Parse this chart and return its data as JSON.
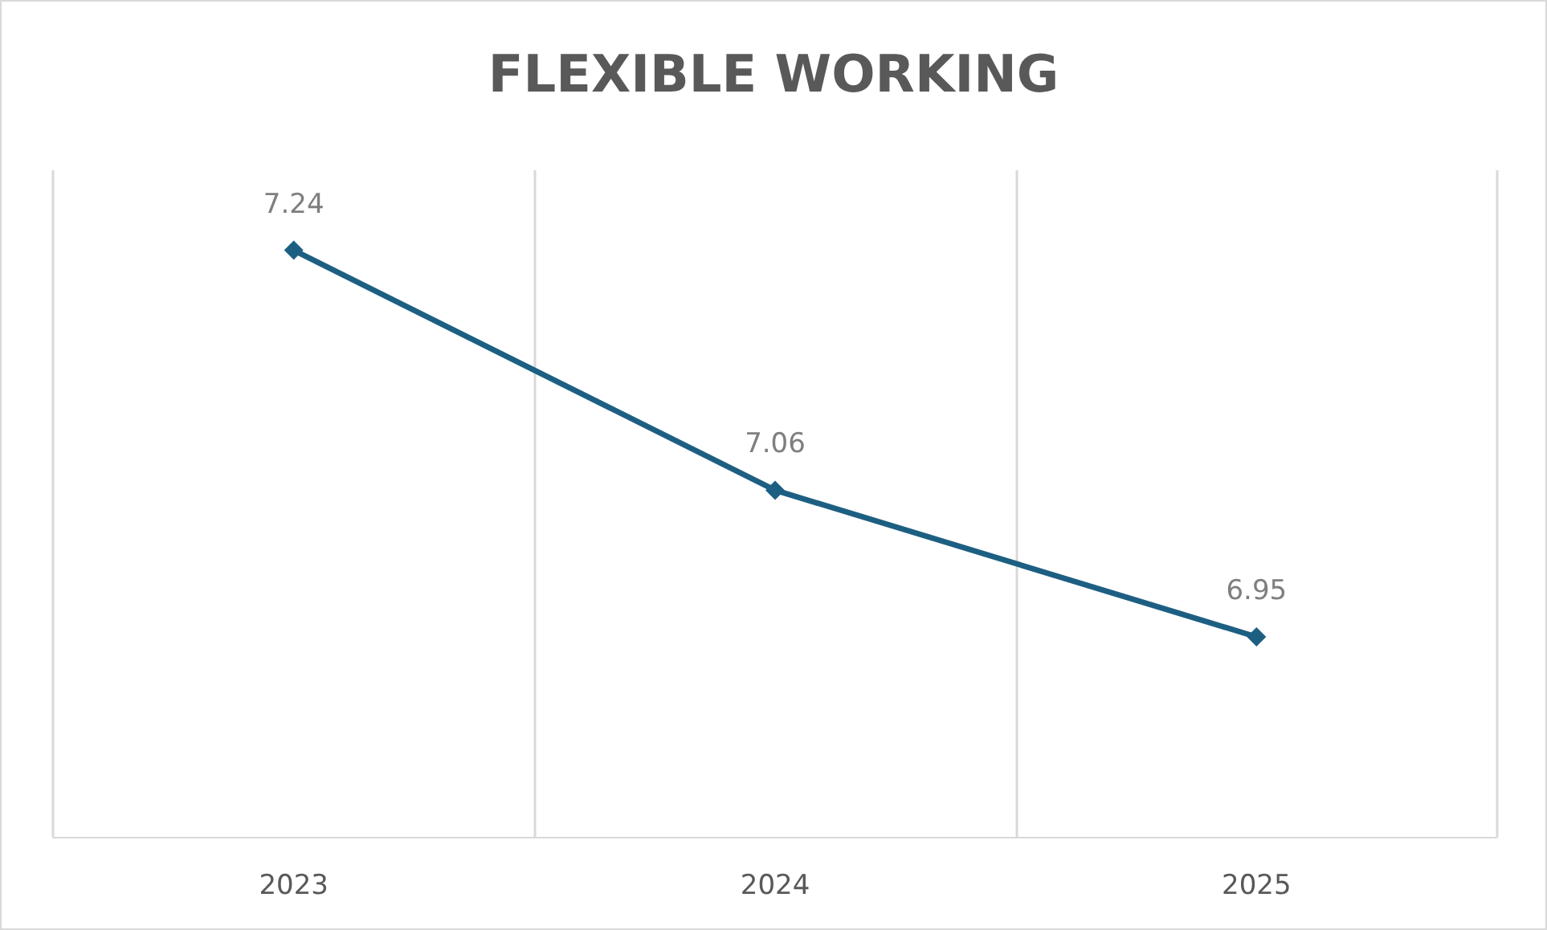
{
  "chart_data": {
    "type": "line",
    "title": "FLEXIBLE WORKING",
    "categories": [
      "2023",
      "2024",
      "2025"
    ],
    "series": [
      {
        "color": "#1d5f82",
        "values": [
          7.24,
          7.06,
          6.95
        ]
      }
    ],
    "ylim": [
      6.8,
      7.3
    ],
    "tick_labels": "x",
    "grid": "x",
    "marker": "diamond",
    "line_style": "solid",
    "data_labels": true
  }
}
